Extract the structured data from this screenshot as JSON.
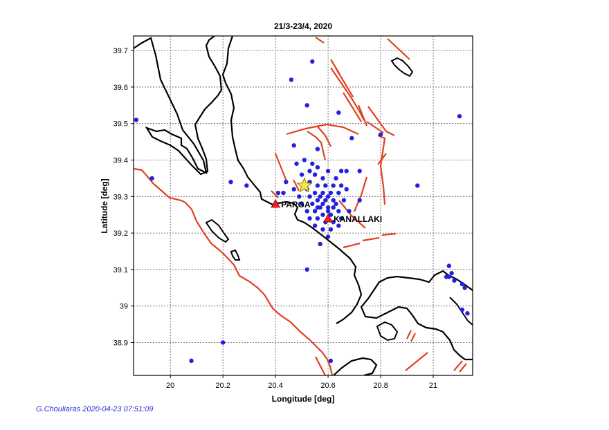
{
  "chart_data": {
    "type": "scatter",
    "title": "21/3-23/4, 2020",
    "xlabel": "Longitude [deg]",
    "ylabel": "Latitude [deg]",
    "xlim": [
      19.86,
      21.15
    ],
    "ylim": [
      38.81,
      39.74
    ],
    "xticks": [
      {
        "v": 20.0,
        "label": "20"
      },
      {
        "v": 20.2,
        "label": "20.2"
      },
      {
        "v": 20.4,
        "label": "20.4"
      },
      {
        "v": 20.6,
        "label": "20.6"
      },
      {
        "v": 20.8,
        "label": "20.8"
      },
      {
        "v": 21.0,
        "label": "21"
      }
    ],
    "yticks": [
      {
        "v": 38.9,
        "label": "38.9"
      },
      {
        "v": 39.0,
        "label": "39"
      },
      {
        "v": 39.1,
        "label": "39.1"
      },
      {
        "v": 39.2,
        "label": "39.2"
      },
      {
        "v": 39.3,
        "label": "39.3"
      },
      {
        "v": 39.4,
        "label": "39.4"
      },
      {
        "v": 39.5,
        "label": "39.5"
      },
      {
        "v": 39.6,
        "label": "39.6"
      },
      {
        "v": 39.7,
        "label": "39.7"
      }
    ],
    "grid": true,
    "series": [
      {
        "marker": "circle",
        "color": "#2222dd",
        "points": [
          [
            20.54,
            39.67
          ],
          [
            20.46,
            39.62
          ],
          [
            20.52,
            39.55
          ],
          [
            20.64,
            39.53
          ],
          [
            21.1,
            39.52
          ],
          [
            19.87,
            39.51
          ],
          [
            20.8,
            39.47
          ],
          [
            20.69,
            39.46
          ],
          [
            20.47,
            39.44
          ],
          [
            20.56,
            39.43
          ],
          [
            20.51,
            39.4
          ],
          [
            20.48,
            39.39
          ],
          [
            20.54,
            39.39
          ],
          [
            20.56,
            39.38
          ],
          [
            20.6,
            39.37
          ],
          [
            20.53,
            39.37
          ],
          [
            20.65,
            39.37
          ],
          [
            20.67,
            39.37
          ],
          [
            20.72,
            39.37
          ],
          [
            20.5,
            39.36
          ],
          [
            20.55,
            39.36
          ],
          [
            20.58,
            39.35
          ],
          [
            20.63,
            39.35
          ],
          [
            19.93,
            39.35
          ],
          [
            20.44,
            39.34
          ],
          [
            20.23,
            39.34
          ],
          [
            20.29,
            39.33
          ],
          [
            20.94,
            39.33
          ],
          [
            20.53,
            39.34
          ],
          [
            20.56,
            39.33
          ],
          [
            20.59,
            39.33
          ],
          [
            20.62,
            39.33
          ],
          [
            20.65,
            39.33
          ],
          [
            20.47,
            39.32
          ],
          [
            20.52,
            39.32
          ],
          [
            20.55,
            39.31
          ],
          [
            20.58,
            39.31
          ],
          [
            20.61,
            39.31
          ],
          [
            20.64,
            39.31
          ],
          [
            20.67,
            39.32
          ],
          [
            20.41,
            39.31
          ],
          [
            20.43,
            39.31
          ],
          [
            20.49,
            39.3
          ],
          [
            20.53,
            39.3
          ],
          [
            20.56,
            39.29
          ],
          [
            20.59,
            39.29
          ],
          [
            20.62,
            39.29
          ],
          [
            20.66,
            39.29
          ],
          [
            20.72,
            39.29
          ],
          [
            20.5,
            39.28
          ],
          [
            20.54,
            39.28
          ],
          [
            20.57,
            39.27
          ],
          [
            20.6,
            39.27
          ],
          [
            20.63,
            39.28
          ],
          [
            20.52,
            39.26
          ],
          [
            20.55,
            39.26
          ],
          [
            20.58,
            39.25
          ],
          [
            20.61,
            39.25
          ],
          [
            20.64,
            39.26
          ],
          [
            20.68,
            39.26
          ],
          [
            20.53,
            39.24
          ],
          [
            20.56,
            39.24
          ],
          [
            20.59,
            39.23
          ],
          [
            20.62,
            39.23
          ],
          [
            20.65,
            39.24
          ],
          [
            20.55,
            39.22
          ],
          [
            20.58,
            39.21
          ],
          [
            20.61,
            39.21
          ],
          [
            20.64,
            39.22
          ],
          [
            20.6,
            39.19
          ],
          [
            20.57,
            39.17
          ],
          [
            20.52,
            39.1
          ],
          [
            21.06,
            39.11
          ],
          [
            21.05,
            39.08
          ],
          [
            21.06,
            39.08
          ],
          [
            21.08,
            39.07
          ],
          [
            21.07,
            39.09
          ],
          [
            21.11,
            39.06
          ],
          [
            21.12,
            39.05
          ],
          [
            21.11,
            38.99
          ],
          [
            21.13,
            38.98
          ],
          [
            20.2,
            38.9
          ],
          [
            20.08,
            38.85
          ],
          [
            20.61,
            38.85
          ],
          [
            20.57,
            39.3
          ],
          [
            20.6,
            39.3
          ],
          [
            20.58,
            39.28
          ],
          [
            20.56,
            39.27
          ],
          [
            20.6,
            39.26
          ],
          [
            20.62,
            39.27
          ]
        ]
      },
      {
        "marker": "star",
        "color": "#f5e84a",
        "points": [
          [
            20.51,
            39.33
          ]
        ]
      },
      {
        "marker": "triangle",
        "color": "#ee2222",
        "points": [
          [
            20.4,
            39.28
          ],
          [
            20.6,
            39.24
          ]
        ]
      }
    ],
    "station_labels": [
      "PARGA",
      "KANALLAKI"
    ]
  },
  "footer": {
    "credit": "G.Chouliaras 2020-04-23 07:51:09"
  }
}
